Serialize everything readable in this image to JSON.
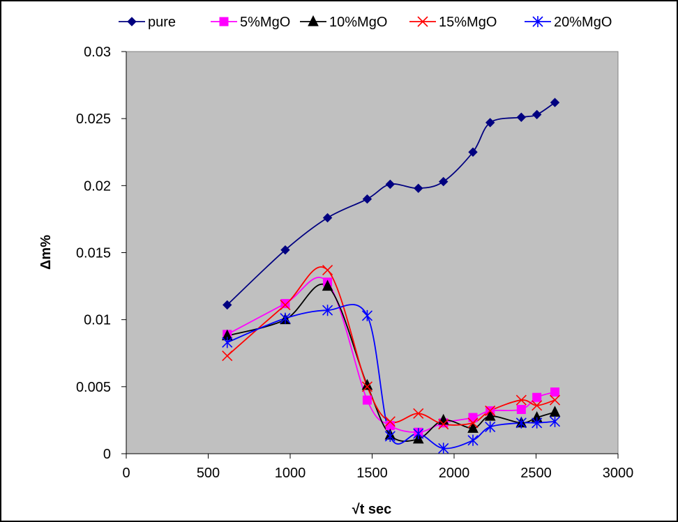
{
  "chart_data": {
    "type": "line",
    "smooth": true,
    "title": "",
    "xlabel": "√t sec",
    "ylabel": "Δm%",
    "xlim": [
      0,
      3000
    ],
    "ylim": [
      0,
      0.03
    ],
    "x_ticks": [
      "0",
      "500",
      "1000",
      "1500",
      "2000",
      "2500",
      "3000"
    ],
    "y_ticks": [
      "0",
      "0.005",
      "0.01",
      "0.015",
      "0.02",
      "0.025",
      "0.03"
    ],
    "grid": false,
    "legend_position": "top",
    "plot_background": "#c0c0c0",
    "x": [
      616,
      970,
      1228,
      1470,
      1610,
      1782,
      1935,
      2115,
      2220,
      2410,
      2505,
      2615
    ],
    "series": [
      {
        "name": "pure",
        "color": "#000080",
        "marker": "diamond",
        "values": [
          0.0111,
          0.0152,
          0.0176,
          0.019,
          0.0201,
          0.0198,
          0.0203,
          0.0225,
          0.0247,
          0.0251,
          0.0253,
          0.0262
        ]
      },
      {
        "name": "5%MgO",
        "color": "#ff00ff",
        "marker": "square",
        "values": [
          0.0089,
          0.0112,
          0.0128,
          0.004,
          0.0021,
          0.0016,
          0.0023,
          0.0027,
          0.0032,
          0.0033,
          0.0042,
          0.0046
        ]
      },
      {
        "name": "10%MgO",
        "color": "#000000",
        "marker": "triangle",
        "values": [
          0.0088,
          0.01,
          0.0125,
          0.0051,
          0.0014,
          0.0011,
          0.0025,
          0.0019,
          0.0028,
          0.0023,
          0.0027,
          0.0031
        ]
      },
      {
        "name": "15%MgO",
        "color": "#ff0000",
        "marker": "x",
        "values": [
          0.0073,
          0.0111,
          0.0137,
          0.005,
          0.0024,
          0.003,
          0.0022,
          0.0023,
          0.0032,
          0.004,
          0.0036,
          0.004
        ]
      },
      {
        "name": "20%MgO",
        "color": "#0000ff",
        "marker": "asterisk",
        "values": [
          0.0083,
          0.0101,
          0.0107,
          0.0103,
          0.0013,
          0.0015,
          0.0004,
          0.001,
          0.002,
          0.0023,
          0.0023,
          0.0024
        ]
      }
    ]
  }
}
